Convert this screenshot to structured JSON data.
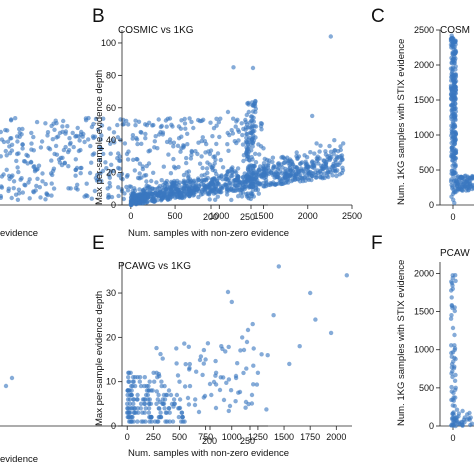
{
  "panels": {
    "A": {
      "xticks": [
        "200",
        "250"
      ],
      "xlabel": "evidence"
    },
    "A2": {
      "xticks": [
        "200",
        "250"
      ],
      "xlabel": "evidence"
    },
    "B": {
      "letter": "B",
      "title": "COSMIC vs 1KG",
      "xlabel": "Num. samples with non-zero evidence",
      "ylabel": "Max per-sample evidence depth",
      "xticks": [
        "0",
        "500",
        "1000",
        "1500",
        "2000",
        "2500"
      ],
      "yticks": [
        "0",
        "20",
        "40",
        "60",
        "80",
        "100"
      ]
    },
    "C": {
      "letter": "C",
      "title": "COSM",
      "ylabel": "Num. 1KG samples with STIX evidence",
      "xticks": [
        "0"
      ],
      "yticks": [
        "0",
        "500",
        "1000",
        "1500",
        "2000",
        "2500"
      ]
    },
    "E": {
      "letter": "E",
      "title": "PCAWG vs 1KG",
      "xlabel": "Num. samples with non-zero evidence",
      "ylabel": "Max per-sample evidence depth",
      "xticks": [
        "0",
        "250",
        "500",
        "750",
        "1000",
        "1250",
        "1500",
        "1750",
        "2000"
      ],
      "yticks": [
        "0",
        "10",
        "20",
        "30"
      ]
    },
    "F": {
      "letter": "F",
      "title": "PCAW",
      "ylabel": "Num. 1KG samples with STIX evidence",
      "xticks": [
        "0"
      ],
      "yticks": [
        "0",
        "500",
        "1000",
        "1500",
        "2000"
      ]
    }
  },
  "colors": {
    "points": "#3a78c0"
  },
  "chart_data": [
    {
      "type": "scatter",
      "panel": "B",
      "title": "COSMIC vs 1KG",
      "xlabel": "Num. samples with non-zero evidence",
      "ylabel": "Max per-sample evidence depth",
      "xlim": [
        -100,
        2500
      ],
      "ylim": [
        0,
        108
      ],
      "points": [
        [
          2260,
          104
        ],
        [
          1160,
          85
        ],
        [
          2050,
          55
        ],
        [
          1000,
          42
        ],
        [
          1900,
          30
        ],
        [
          2300,
          40
        ],
        [
          800,
          30
        ],
        [
          1500,
          35
        ],
        [
          1200,
          18
        ],
        [
          600,
          15
        ],
        [
          300,
          10
        ],
        [
          100,
          6
        ],
        [
          50,
          5
        ],
        [
          1700,
          25
        ],
        [
          2100,
          38
        ],
        [
          1800,
          28
        ],
        [
          1350,
          22
        ],
        [
          950,
          16
        ],
        [
          700,
          12
        ],
        [
          450,
          9
        ],
        [
          200,
          5
        ],
        [
          20,
          2
        ],
        [
          2400,
          38
        ]
      ],
      "trend": {
        "x": [
          0,
          2400
        ],
        "y_low": [
          0,
          18
        ],
        "y_high": [
          12,
          42
        ]
      }
    },
    {
      "type": "scatter",
      "panel": "C",
      "title": "COSM",
      "ylabel": "Num. 1KG samples with STIX evidence",
      "ylim": [
        0,
        2500
      ],
      "points": [
        [
          0,
          2350
        ],
        [
          0,
          1800
        ],
        [
          0,
          1200
        ],
        [
          0,
          600
        ],
        [
          0,
          200
        ],
        [
          0,
          50
        ]
      ]
    },
    {
      "type": "scatter",
      "panel": "E",
      "title": "PCAWG vs 1KG",
      "xlabel": "Num. samples with non-zero evidence",
      "ylabel": "Max per-sample evidence depth",
      "xlim": [
        -50,
        2150
      ],
      "ylim": [
        0,
        37
      ],
      "points": [
        [
          2100,
          34
        ],
        [
          1750,
          30
        ],
        [
          1450,
          36
        ],
        [
          1400,
          25
        ],
        [
          1000,
          28
        ],
        [
          1800,
          24
        ],
        [
          1250,
          12
        ],
        [
          1550,
          14
        ],
        [
          900,
          18
        ],
        [
          1100,
          20
        ],
        [
          750,
          15
        ],
        [
          600,
          9
        ],
        [
          500,
          10
        ],
        [
          400,
          8
        ],
        [
          300,
          7
        ],
        [
          200,
          6
        ],
        [
          100,
          4
        ],
        [
          50,
          2
        ],
        [
          1650,
          18
        ],
        [
          1950,
          21
        ],
        [
          1200,
          23
        ],
        [
          850,
          12
        ],
        [
          650,
          6
        ]
      ]
    },
    {
      "type": "scatter",
      "panel": "F",
      "title": "PCAW",
      "ylabel": "Num. 1KG samples with STIX evidence",
      "ylim": [
        0,
        2150
      ],
      "points": [
        [
          0,
          2080
        ],
        [
          0,
          1700
        ],
        [
          0,
          1300
        ],
        [
          0,
          900
        ],
        [
          0,
          500
        ],
        [
          0,
          150
        ]
      ]
    }
  ]
}
